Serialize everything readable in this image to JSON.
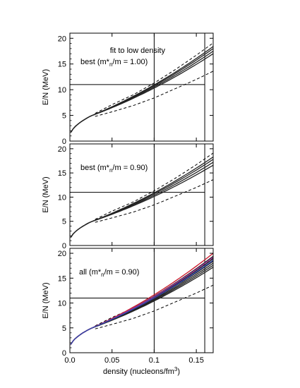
{
  "chart_data": [
    {
      "type": "line",
      "ylabel": "E/N (MeV)",
      "ylim": [
        0,
        21
      ],
      "xlim": [
        0,
        0.17
      ],
      "yticks": [
        "0",
        "5",
        "10",
        "15",
        "20"
      ],
      "annotation_lines": [
        "fit to low density",
        "best (m*n/m = 1.00)"
      ],
      "annotation_parts": {
        "prefix": "best (m*",
        "sub": "n",
        "suffix": "/m = 1.00)"
      },
      "hline": 11,
      "vlines": [
        0.1,
        0.16
      ],
      "band_lower": {
        "x": [
          0.03,
          0.05,
          0.075,
          0.1,
          0.125,
          0.15,
          0.17
        ],
        "y": [
          4.8,
          5.7,
          6.9,
          8.4,
          10.2,
          12.0,
          13.6
        ]
      },
      "band_upper": {
        "x": [
          0.03,
          0.05,
          0.075,
          0.1,
          0.125,
          0.15,
          0.17
        ],
        "y": [
          5.4,
          7.1,
          9.0,
          11.3,
          13.9,
          16.7,
          19.1
        ]
      },
      "curves_end": [
        17.0,
        17.5,
        18.0,
        18.4
      ]
    },
    {
      "type": "line",
      "ylabel": "E/N (MeV)",
      "ylim": [
        0,
        21
      ],
      "xlim": [
        0,
        0.17
      ],
      "yticks": [
        "0",
        "5",
        "10",
        "15",
        "20"
      ],
      "annotation_lines": [
        "best (m*n/m = 0.90)"
      ],
      "annotation_parts": {
        "prefix": "best (m*",
        "sub": "n",
        "suffix": "/m = 0.90)"
      },
      "hline": 11,
      "vlines": [
        0.1,
        0.16
      ],
      "band_lower": {
        "x": [
          0.03,
          0.05,
          0.075,
          0.1,
          0.125,
          0.15,
          0.17
        ],
        "y": [
          4.8,
          5.7,
          6.9,
          8.4,
          10.2,
          12.0,
          13.6
        ]
      },
      "band_upper": {
        "x": [
          0.03,
          0.05,
          0.075,
          0.1,
          0.125,
          0.15,
          0.17
        ],
        "y": [
          5.4,
          7.1,
          9.0,
          11.3,
          13.9,
          16.7,
          19.1
        ]
      },
      "curves_end": [
        16.6,
        17.2,
        17.8,
        18.3
      ]
    },
    {
      "type": "line",
      "ylabel": "E/N (MeV)",
      "xlabel_parts": {
        "prefix": "density (nucleons/fm",
        "sup": "3",
        "suffix": ")"
      },
      "ylim": [
        0,
        21
      ],
      "xlim": [
        0,
        0.17
      ],
      "xticks": [
        "0.0",
        "0.05",
        "0.1",
        "0.15"
      ],
      "yticks": [
        "0",
        "5",
        "10",
        "15",
        "20"
      ],
      "annotation_lines": [
        "all (m*n/m = 0.90)"
      ],
      "annotation_parts": {
        "prefix": "all (m*",
        "sub": "n",
        "suffix": "/m = 0.90)"
      },
      "hline": 11,
      "vlines": [
        0.1,
        0.16
      ],
      "band_lower": {
        "x": [
          0.03,
          0.05,
          0.075,
          0.1,
          0.125,
          0.15,
          0.17
        ],
        "y": [
          4.8,
          5.7,
          6.9,
          8.4,
          10.2,
          12.0,
          13.6
        ]
      },
      "band_upper": {
        "x": [
          0.03,
          0.05,
          0.075,
          0.1,
          0.125,
          0.15,
          0.17
        ],
        "y": [
          5.4,
          7.1,
          9.0,
          11.3,
          13.9,
          16.7,
          19.1
        ]
      },
      "curves_end": [
        17.2,
        17.6,
        18.0,
        18.4,
        18.9,
        19.4
      ],
      "colored_curves": [
        {
          "color": "#cc2233",
          "end": 20.0
        },
        {
          "color": "#993399",
          "end": 19.2
        },
        {
          "color": "#3344aa",
          "end": 18.6
        }
      ]
    }
  ]
}
